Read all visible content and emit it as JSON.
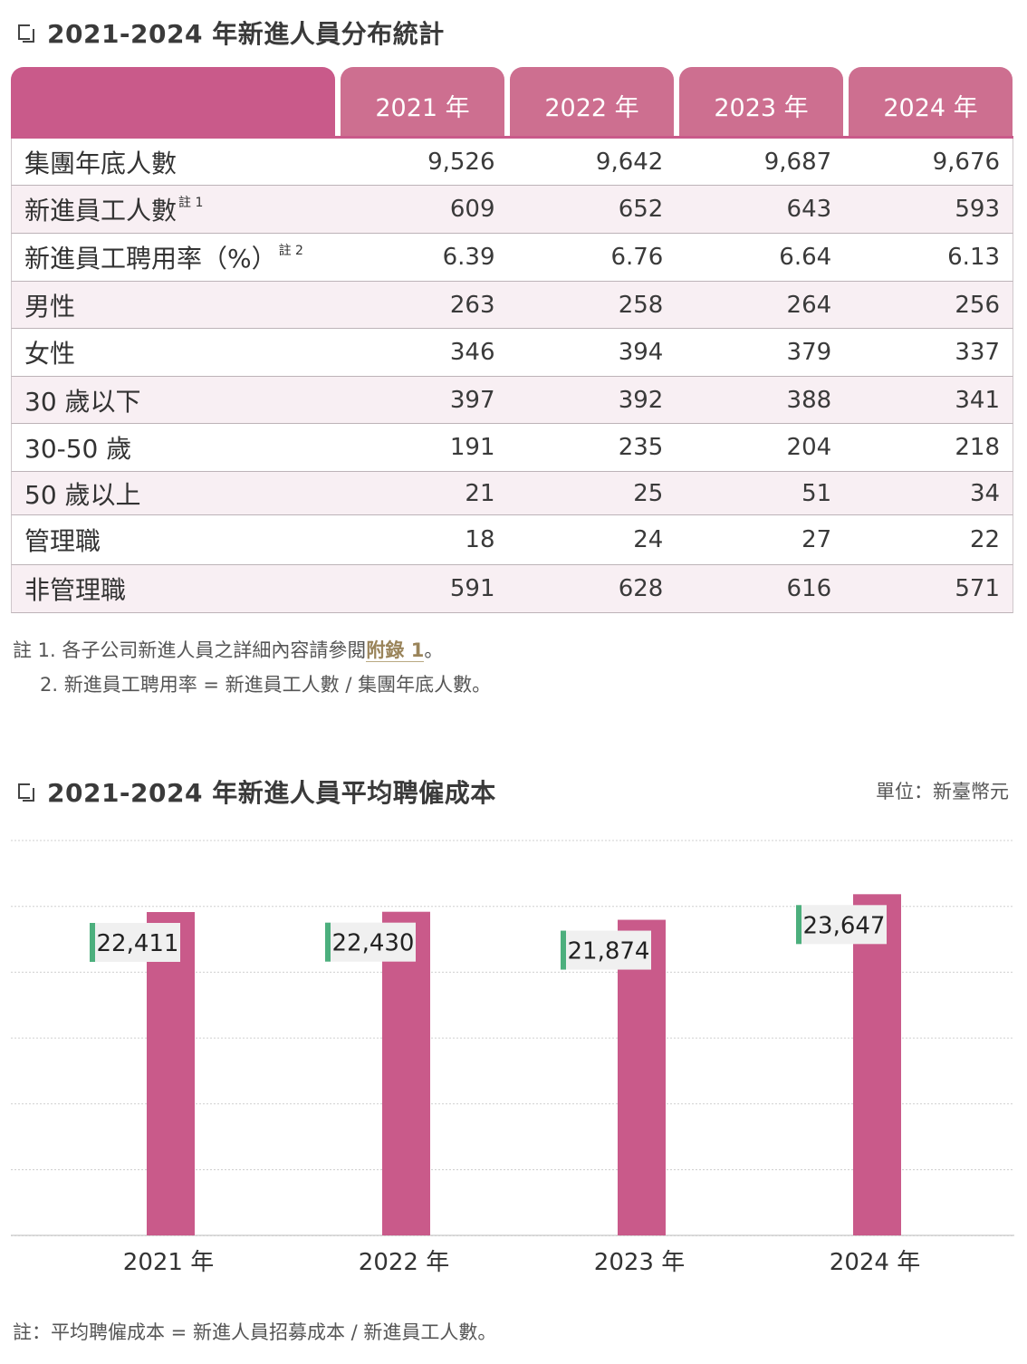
{
  "table_section": {
    "title": "2021-2024 年新進人員分布統計",
    "columns": [
      "2021 年",
      "2022 年",
      "2023 年",
      "2024 年"
    ],
    "rows": [
      {
        "label": "集團年底人數",
        "note": "",
        "values": [
          "9,526",
          "9,642",
          "9,687",
          "9,676"
        ]
      },
      {
        "label": "新進員工人數",
        "note": "註 1",
        "values": [
          "609",
          "652",
          "643",
          "593"
        ]
      },
      {
        "label": "新進員工聘用率（%）",
        "note": "註 2",
        "values": [
          "6.39",
          "6.76",
          "6.64",
          "6.13"
        ]
      },
      {
        "label": "男性",
        "note": "",
        "values": [
          "263",
          "258",
          "264",
          "256"
        ]
      },
      {
        "label": "女性",
        "note": "",
        "values": [
          "346",
          "394",
          "379",
          "337"
        ]
      },
      {
        "label": "30 歲以下",
        "note": "",
        "values": [
          "397",
          "392",
          "388",
          "341"
        ]
      },
      {
        "label": "30-50 歲",
        "note": "",
        "values": [
          "191",
          "235",
          "204",
          "218"
        ]
      },
      {
        "label": "50 歲以上",
        "note": "",
        "values": [
          "21",
          "25",
          "51",
          "34"
        ]
      },
      {
        "label": "管理職",
        "note": "",
        "values": [
          "18",
          "24",
          "27",
          "22"
        ]
      },
      {
        "label": "非管理職",
        "note": "",
        "values": [
          "591",
          "628",
          "616",
          "571"
        ]
      }
    ],
    "notes": {
      "note1_prefix": "註 1. 各子公司新進人員之詳細內容請參閱",
      "note1_link": "附錄 1",
      "note1_suffix": "。",
      "note2": "2. 新進員工聘用率 = 新進員工人數 / 集團年底人數。"
    }
  },
  "chart_section": {
    "title": "2021-2024 年新進人員平均聘僱成本",
    "unit": "單位：新臺幣元",
    "footnote": "註：平均聘僱成本 = 新進人員招募成本 / 新進員工人數。"
  },
  "chart_data": {
    "type": "bar",
    "categories": [
      "2021 年",
      "2022 年",
      "2023 年",
      "2024 年"
    ],
    "values": [
      22411,
      22430,
      21874,
      23647
    ],
    "value_labels": [
      "22,411",
      "22,430",
      "21,874",
      "23,647"
    ],
    "title": "2021-2024 年新進人員平均聘僱成本",
    "xlabel": "",
    "ylabel": "",
    "grid": true,
    "colors": {
      "bar": "#c95a8a",
      "label_bg": "#f0f0f0",
      "label_accent": "#4caf7d",
      "grid": "#cfcfcf"
    }
  }
}
